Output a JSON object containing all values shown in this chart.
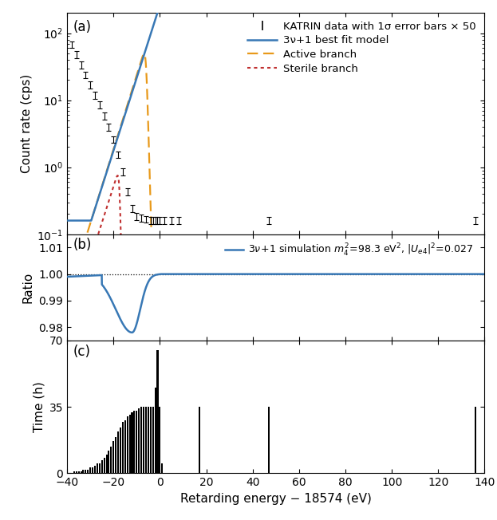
{
  "xlim": [
    -40,
    140
  ],
  "xticks": [
    -40,
    -20,
    0,
    20,
    40,
    60,
    80,
    100,
    120,
    140
  ],
  "xlabel": "Retarding energy − 18574 (eV)",
  "panel_a_ylabel": "Count rate (cps)",
  "panel_a_label": "(a)",
  "panel_b_ylabel": "Ratio",
  "panel_b_ylim": [
    0.975,
    1.015
  ],
  "panel_b_yticks": [
    0.98,
    0.99,
    1.0,
    1.01
  ],
  "panel_b_label": "(b)",
  "panel_c_ylabel": "Time (h)",
  "panel_c_ylim": [
    0,
    70
  ],
  "panel_c_yticks": [
    0,
    35,
    70
  ],
  "panel_c_label": "(c)",
  "blue_color": "#3878b5",
  "orange_color": "#e8991a",
  "red_color": "#c03030",
  "black_color": "#000000",
  "legend_entries": [
    "KATRIN data with 1σ error bars × 50",
    "3ν+1 best fit model",
    "Active branch",
    "Sterile branch"
  ],
  "data_x": [
    -38,
    -36,
    -34,
    -32,
    -30,
    -28,
    -26,
    -24,
    -22,
    -20,
    -18,
    -16,
    -14,
    -12,
    -10,
    -8,
    -6,
    -4,
    -3,
    -2,
    -1,
    0,
    2,
    5,
    8,
    47,
    136
  ],
  "data_y": [
    68,
    48,
    34,
    24,
    17,
    12,
    8.5,
    5.8,
    4.0,
    2.6,
    1.55,
    0.85,
    0.43,
    0.245,
    0.185,
    0.175,
    0.168,
    0.163,
    0.162,
    0.16,
    0.16,
    0.16,
    0.16,
    0.16,
    0.16,
    0.16,
    0.16
  ],
  "time_bar_x": [
    -37,
    -36,
    -35,
    -34,
    -33,
    -32,
    -31,
    -30,
    -29,
    -28,
    -27,
    -26,
    -25,
    -24,
    -23,
    -22,
    -21,
    -20,
    -19,
    -18,
    -17,
    -16,
    -15,
    -14,
    -13,
    -12,
    -11,
    -10,
    -9,
    -8,
    -7,
    -6,
    -5,
    -4,
    -3,
    -2,
    -1,
    0,
    1,
    17,
    47,
    136
  ],
  "time_bar_h": [
    1,
    1,
    1,
    1,
    2,
    2,
    2,
    3,
    3,
    4,
    5,
    5,
    7,
    8,
    10,
    12,
    14,
    17,
    19,
    22,
    24,
    27,
    28,
    30,
    31,
    32,
    33,
    33,
    34,
    35,
    35,
    35,
    35,
    35,
    35,
    45,
    65,
    35,
    5,
    35,
    35,
    35
  ]
}
